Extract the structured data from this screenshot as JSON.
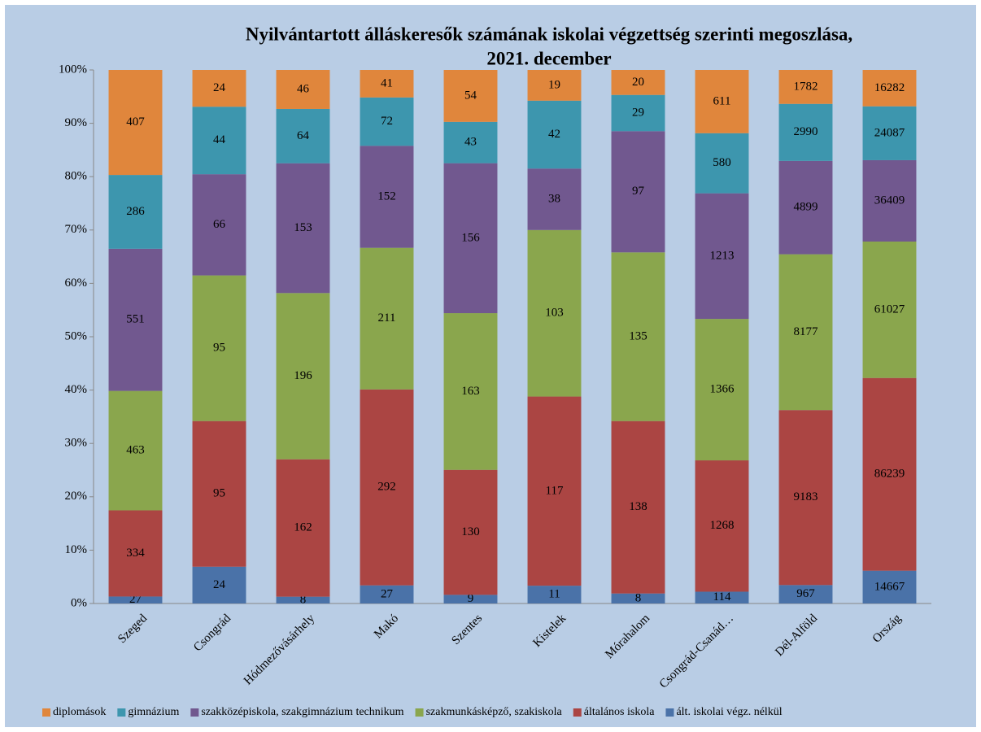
{
  "chart_data": {
    "type": "bar",
    "stack": "percent",
    "title": [
      "Nyilvántartott álláskeresők számának iskolai végzettség szerinti megoszlása,",
      "2021. december"
    ],
    "categories": [
      "Szeged",
      "Csongrád",
      "Hódmezővásárhely",
      "Makó",
      "Szentes",
      "Kistelek",
      "Mórahalom",
      "Csongrád-Csanád…",
      "Dél-Alföld",
      "Ország"
    ],
    "series": [
      {
        "name": "ált. iskolai végz. nélkül",
        "color": "#4a72a8",
        "values": [
          27,
          24,
          8,
          27,
          9,
          11,
          8,
          114,
          967,
          14667
        ]
      },
      {
        "name": "általános iskola",
        "color": "#ab4543",
        "values": [
          334,
          95,
          162,
          292,
          130,
          117,
          138,
          1268,
          9183,
          86239
        ]
      },
      {
        "name": "szakmunkásképző, szakiskola",
        "color": "#8aa64d",
        "values": [
          463,
          95,
          196,
          211,
          163,
          103,
          135,
          1366,
          8177,
          61027
        ]
      },
      {
        "name": "szakközépiskola, szakgimnázium technikum",
        "color": "#71588f",
        "values": [
          551,
          66,
          153,
          152,
          156,
          38,
          97,
          1213,
          4899,
          36409
        ]
      },
      {
        "name": "gimnázium",
        "color": "#3d96ae",
        "values": [
          286,
          44,
          64,
          72,
          43,
          42,
          29,
          580,
          2990,
          24087
        ]
      },
      {
        "name": "diplomások",
        "color": "#e0863c",
        "values": [
          407,
          24,
          46,
          41,
          54,
          19,
          20,
          611,
          1782,
          16282
        ]
      }
    ],
    "ylim": [
      0,
      100
    ],
    "yticks": [
      {
        "value": 0,
        "label": "0%"
      },
      {
        "value": 10,
        "label": "10%"
      },
      {
        "value": 20,
        "label": "20%"
      },
      {
        "value": 30,
        "label": "30%"
      },
      {
        "value": 40,
        "label": "40%"
      },
      {
        "value": 50,
        "label": "50%"
      },
      {
        "value": 60,
        "label": "60%"
      },
      {
        "value": 70,
        "label": "70%"
      },
      {
        "value": 80,
        "label": "80%"
      },
      {
        "value": 90,
        "label": "90%"
      },
      {
        "value": 100,
        "label": "100%"
      }
    ],
    "legend": "bottom",
    "grid": false
  }
}
